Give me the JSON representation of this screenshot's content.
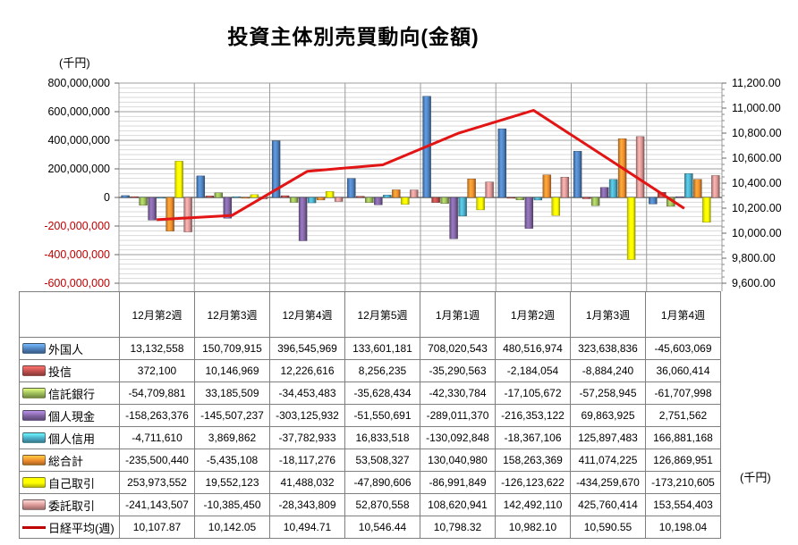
{
  "title": "投資主体別売買動向(金額)",
  "chart_data": {
    "type": "bar",
    "title": "投資主体別売買動向(金額)",
    "categories": [
      "12月第2週",
      "12月第3週",
      "12月第4週",
      "12月第5週",
      "1月第1週",
      "1月第2週",
      "1月第3週",
      "1月第4週"
    ],
    "series": [
      {
        "name": "外国人",
        "color": "#4F81BD",
        "values": [
          13132558,
          150709915,
          396545969,
          133601181,
          708020543,
          480516974,
          323638836,
          -45603069
        ]
      },
      {
        "name": "投信",
        "color": "#C0504D",
        "values": [
          372100,
          10146969,
          12226616,
          8256235,
          -35290563,
          -2184054,
          -8884240,
          36060414
        ]
      },
      {
        "name": "信託銀行",
        "color": "#9BBB59",
        "values": [
          -54709881,
          33185509,
          -34453483,
          -35628434,
          -42330784,
          -17105672,
          -57258945,
          -61707998
        ]
      },
      {
        "name": "個人現金",
        "color": "#8064A2",
        "values": [
          -158263376,
          -145507237,
          -303125932,
          -51550691,
          -289011370,
          -216353122,
          69863925,
          2751562
        ]
      },
      {
        "name": "個人信用",
        "color": "#4BACC6",
        "values": [
          -4711610,
          3869862,
          -37782933,
          16833518,
          -130092848,
          -18367106,
          125897483,
          166881168
        ]
      },
      {
        "name": "総合計",
        "color": "#EF8D2E",
        "values": [
          -235500440,
          -5435108,
          -18117276,
          53508327,
          130040980,
          158263369,
          411074225,
          126869951
        ]
      },
      {
        "name": "自己取引",
        "color": "#FFFF00",
        "values": [
          253973552,
          19552123,
          41488032,
          -47890606,
          -86991849,
          -126123622,
          -434259670,
          -173210605
        ]
      },
      {
        "name": "委託取引",
        "color": "#D99694",
        "values": [
          -241143507,
          -10385450,
          -28343809,
          52870558,
          108620941,
          142492110,
          425760414,
          153554403
        ]
      }
    ],
    "line_series": {
      "name": "日経平均(週)",
      "color": "#E21414",
      "legend_color": "#C00000",
      "axis": "right",
      "values": [
        10107.87,
        10142.05,
        10494.71,
        10546.44,
        10798.32,
        10982.1,
        10590.55,
        10198.04
      ]
    },
    "left_axis": {
      "unit": "(千円)",
      "min": -600000000,
      "max": 800000000,
      "major": 200000000,
      "minor_per_major": 6,
      "negative_tick_color": "#C00000",
      "ticks": [
        "800,000,000",
        "600,000,000",
        "400,000,000",
        "200,000,000",
        "0",
        "-200,000,000",
        "-400,000,000",
        "-600,000,000"
      ]
    },
    "right_axis": {
      "unit": "(千円)",
      "min": 9600,
      "max": 11200,
      "major": 200,
      "ticks": [
        "11,200.00",
        "11,000.00",
        "10,800.00",
        "10,600.00",
        "10,400.00",
        "10,200.00",
        "10,000.00",
        "9,800.00",
        "9,600.00"
      ]
    },
    "grid": true,
    "legend_position": "table-left-column"
  },
  "table": {
    "nikkei_format_decimals": 2
  }
}
